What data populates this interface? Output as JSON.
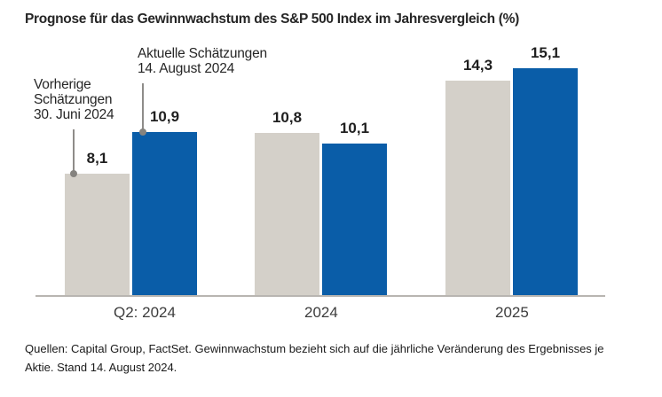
{
  "title": "Prognose für das Gewinnwachstum des S&P 500 Index im Jahresvergleich (%)",
  "annotations": {
    "previous": {
      "lines": [
        "Vorherige",
        "Schätzungen",
        "30. Juni 2024"
      ]
    },
    "current": {
      "lines": [
        "Aktuelle Schätzungen",
        "14. August 2024"
      ]
    }
  },
  "footer": "Quellen: Capital Group, FactSet. Gewinnwachstum bezieht sich auf die jährliche Veränderung des Ergebnisses je Aktie. Stand 14. August 2024.",
  "colors": {
    "previous_series": "#D4D0C9",
    "current_series": "#0A5DA8",
    "axis_line": "#B8B5B1",
    "leader_line": "#8E8C89",
    "text": "#262626"
  },
  "chart_data": {
    "type": "bar",
    "categories": [
      "Q2: 2024",
      "2024",
      "2025"
    ],
    "series": [
      {
        "name": "Vorherige Schätzungen 30. Juni 2024",
        "values": [
          8.1,
          10.8,
          14.3
        ],
        "labels": [
          "8,1",
          "10,8",
          "14,3"
        ],
        "color": "#D4D0C9"
      },
      {
        "name": "Aktuelle Schätzungen 14. August 2024",
        "values": [
          10.9,
          10.1,
          15.1
        ],
        "labels": [
          "10,9",
          "10,1",
          "15,1"
        ],
        "color": "#0A5DA8"
      }
    ],
    "title": "Prognose für das Gewinnwachstum des S&P 500 Index im Jahresvergleich (%)",
    "xlabel": "",
    "ylabel": "",
    "ylim": [
      0,
      17
    ],
    "grid": false,
    "legend_position": "annotations-on-chart",
    "value_labels_shown": true
  }
}
